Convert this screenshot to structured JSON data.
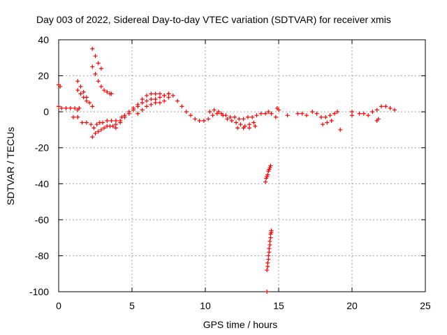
{
  "chart_data": {
    "type": "scatter",
    "title": "Day 003 of 2022, Sidereal Day-to-day VTEC variation (SDTVAR) for receiver xmis",
    "xlabel": "GPS time / hours",
    "ylabel": "SDTVAR / TECUs",
    "xlim": [
      0,
      25
    ],
    "ylim": [
      -100,
      40
    ],
    "xticks": [
      "0",
      "5",
      "10",
      "15",
      "20",
      "25"
    ],
    "yticks": [
      "40",
      "20",
      "0",
      "-20",
      "-40",
      "-60",
      "-80",
      "-100"
    ],
    "grid": true,
    "marker": "+",
    "color": "#ff0000",
    "series": [
      {
        "name": "early_spikes",
        "points": [
          [
            0.0,
            15
          ],
          [
            0.1,
            14
          ],
          [
            0.0,
            3
          ],
          [
            0.2,
            2
          ],
          [
            0.5,
            2
          ],
          [
            0.8,
            2
          ],
          [
            1.1,
            2
          ],
          [
            1.3,
            1
          ],
          [
            1.4,
            2
          ]
        ]
      },
      {
        "name": "rising_arc_a",
        "points": [
          [
            1.3,
            17
          ],
          [
            1.5,
            14
          ],
          [
            1.7,
            11
          ],
          [
            1.9,
            8
          ],
          [
            2.1,
            5
          ],
          [
            2.3,
            3
          ],
          [
            1.3,
            12
          ],
          [
            1.5,
            10
          ],
          [
            1.7,
            8
          ],
          [
            1.9,
            6
          ]
        ]
      },
      {
        "name": "rising_arc_b",
        "points": [
          [
            2.3,
            35
          ],
          [
            2.5,
            31
          ],
          [
            2.7,
            27
          ],
          [
            2.9,
            24
          ],
          [
            2.3,
            25
          ],
          [
            2.5,
            21
          ],
          [
            2.7,
            17
          ],
          [
            2.9,
            14
          ],
          [
            3.1,
            12
          ],
          [
            3.3,
            11
          ],
          [
            3.5,
            10
          ],
          [
            3.6,
            10
          ]
        ]
      },
      {
        "name": "low_band",
        "points": [
          [
            1.0,
            -3
          ],
          [
            1.3,
            -3
          ],
          [
            1.6,
            -6
          ],
          [
            1.9,
            -6
          ],
          [
            2.2,
            -7
          ],
          [
            2.3,
            -14
          ],
          [
            2.5,
            -12
          ],
          [
            2.7,
            -11
          ],
          [
            2.9,
            -10
          ],
          [
            3.1,
            -9
          ],
          [
            3.3,
            -8
          ],
          [
            3.5,
            -8
          ],
          [
            3.7,
            -8
          ],
          [
            3.9,
            -9
          ],
          [
            2.4,
            -9
          ],
          [
            2.6,
            -7
          ],
          [
            2.8,
            -6
          ],
          [
            3.0,
            -6
          ],
          [
            3.3,
            -5
          ],
          [
            3.6,
            -5
          ],
          [
            3.9,
            -5
          ],
          [
            4.2,
            -6
          ],
          [
            4.3,
            -3
          ],
          [
            4.5,
            -2
          ]
        ]
      },
      {
        "name": "main_trace",
        "points": [
          [
            3.9,
            -7
          ],
          [
            4.2,
            -5
          ],
          [
            4.5,
            -3
          ],
          [
            4.8,
            -1
          ],
          [
            5.1,
            1
          ],
          [
            5.4,
            3
          ],
          [
            5.7,
            5
          ],
          [
            6.0,
            6
          ],
          [
            6.3,
            7
          ],
          [
            6.6,
            7
          ],
          [
            6.9,
            8
          ],
          [
            7.2,
            9
          ],
          [
            7.5,
            10
          ],
          [
            7.8,
            9
          ],
          [
            8.1,
            6
          ],
          [
            8.4,
            3
          ],
          [
            8.7,
            0
          ],
          [
            9.0,
            -2
          ],
          [
            9.3,
            -4
          ],
          [
            9.6,
            -5
          ],
          [
            9.9,
            -5
          ],
          [
            10.2,
            -4
          ],
          [
            10.5,
            -2
          ],
          [
            10.8,
            -1
          ],
          [
            11.1,
            -1
          ],
          [
            11.4,
            -2
          ],
          [
            11.7,
            -3
          ],
          [
            12.0,
            -3
          ],
          [
            12.3,
            -4
          ],
          [
            12.6,
            -4
          ],
          [
            12.9,
            -3
          ],
          [
            13.2,
            -3
          ],
          [
            13.5,
            -2
          ],
          [
            13.8,
            -1
          ],
          [
            14.1,
            -1
          ]
        ]
      },
      {
        "name": "upper_trace",
        "points": [
          [
            4.8,
            0
          ],
          [
            5.1,
            2
          ],
          [
            5.4,
            4
          ],
          [
            5.7,
            7
          ],
          [
            6.0,
            9
          ],
          [
            6.3,
            10
          ],
          [
            6.6,
            10
          ],
          [
            6.9,
            10
          ],
          [
            7.2,
            9
          ],
          [
            7.5,
            10
          ],
          [
            5.4,
            -1
          ],
          [
            5.7,
            1
          ],
          [
            6.0,
            3
          ],
          [
            6.3,
            4
          ],
          [
            6.6,
            5
          ],
          [
            6.9,
            5
          ],
          [
            7.2,
            6
          ],
          [
            7.5,
            8
          ]
        ]
      },
      {
        "name": "lower_trace",
        "points": [
          [
            10.3,
            0
          ],
          [
            10.6,
            1
          ],
          [
            10.9,
            0
          ],
          [
            11.2,
            -2
          ],
          [
            11.5,
            -4
          ],
          [
            11.8,
            -5
          ],
          [
            12.1,
            -6
          ],
          [
            12.4,
            -7
          ],
          [
            12.7,
            -8
          ],
          [
            13.0,
            -7
          ],
          [
            13.3,
            -6
          ],
          [
            12.2,
            -9
          ],
          [
            12.6,
            -9
          ],
          [
            13.0,
            -9
          ],
          [
            13.4,
            -8
          ]
        ]
      },
      {
        "name": "late_trace",
        "points": [
          [
            14.3,
            0
          ],
          [
            14.5,
            -1
          ],
          [
            14.8,
            -3
          ],
          [
            14.9,
            2
          ],
          [
            15.0,
            1
          ],
          [
            15.6,
            -2
          ],
          [
            16.3,
            -1
          ],
          [
            16.6,
            -1
          ],
          [
            16.9,
            -2
          ],
          [
            17.3,
            0
          ],
          [
            17.6,
            -1
          ],
          [
            17.9,
            -3
          ],
          [
            18.2,
            -3
          ],
          [
            18.5,
            -2
          ],
          [
            18.8,
            -1
          ],
          [
            19.0,
            0
          ],
          [
            18.0,
            -7
          ],
          [
            18.3,
            -6
          ],
          [
            18.6,
            -5
          ],
          [
            19.2,
            -10
          ],
          [
            20.0,
            0
          ],
          [
            20.0,
            -2
          ],
          [
            20.5,
            -1
          ],
          [
            20.8,
            -1
          ],
          [
            21.1,
            -2
          ],
          [
            21.4,
            0
          ],
          [
            21.7,
            1
          ],
          [
            22.0,
            3
          ],
          [
            22.3,
            3
          ],
          [
            22.6,
            2
          ],
          [
            22.9,
            1
          ],
          [
            21.7,
            -5
          ],
          [
            21.8,
            -4
          ]
        ]
      },
      {
        "name": "dropout_upper",
        "points": [
          [
            14.1,
            -39
          ],
          [
            14.15,
            -37
          ],
          [
            14.2,
            -36
          ],
          [
            14.25,
            -35
          ],
          [
            14.3,
            -33
          ],
          [
            14.35,
            -32
          ],
          [
            14.4,
            -31
          ],
          [
            14.45,
            -30
          ]
        ]
      },
      {
        "name": "dropout_lower",
        "points": [
          [
            14.2,
            -100
          ],
          [
            14.2,
            -88
          ],
          [
            14.25,
            -86
          ],
          [
            14.25,
            -84
          ],
          [
            14.3,
            -82
          ],
          [
            14.3,
            -80
          ],
          [
            14.35,
            -78
          ],
          [
            14.35,
            -76
          ],
          [
            14.4,
            -74
          ],
          [
            14.4,
            -72
          ],
          [
            14.45,
            -70
          ],
          [
            14.45,
            -68
          ],
          [
            14.5,
            -67
          ],
          [
            14.5,
            -66
          ]
        ]
      }
    ]
  }
}
